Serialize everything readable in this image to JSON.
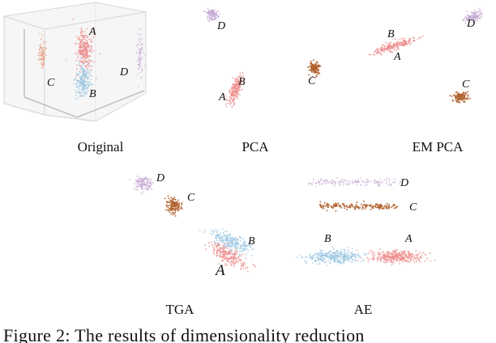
{
  "figure": {
    "caption": "Figure 2: The results of dimensionality reduction",
    "colors": {
      "A": "#ee8e8e",
      "B": "#9ec8e2",
      "C": "#b0602e",
      "D": "#c5a9d3",
      "C_original": "#e6a085"
    },
    "panels": [
      {
        "id": "original",
        "label": "Original",
        "clusters": [
          {
            "name": "A",
            "label": "A"
          },
          {
            "name": "B",
            "label": "B"
          },
          {
            "name": "C",
            "label": "C"
          },
          {
            "name": "D",
            "label": "D"
          }
        ]
      },
      {
        "id": "pca",
        "label": "PCA",
        "clusters": [
          {
            "name": "A",
            "label": "A"
          },
          {
            "name": "B",
            "label": "B"
          },
          {
            "name": "C",
            "label": "C"
          },
          {
            "name": "D",
            "label": "D"
          }
        ]
      },
      {
        "id": "em-pca",
        "label": "EM PCA",
        "clusters": [
          {
            "name": "A",
            "label": "A"
          },
          {
            "name": "B",
            "label": "B"
          },
          {
            "name": "C",
            "label": "C"
          },
          {
            "name": "D",
            "label": "D"
          }
        ]
      },
      {
        "id": "tga",
        "label": "TGA",
        "clusters": [
          {
            "name": "A",
            "label": "A"
          },
          {
            "name": "B",
            "label": "B"
          },
          {
            "name": "C",
            "label": "C"
          },
          {
            "name": "D",
            "label": "D"
          }
        ]
      },
      {
        "id": "ae",
        "label": "AE",
        "clusters": [
          {
            "name": "A",
            "label": "A"
          },
          {
            "name": "B",
            "label": "B"
          },
          {
            "name": "C",
            "label": "C"
          },
          {
            "name": "D",
            "label": "D"
          }
        ]
      }
    ]
  }
}
